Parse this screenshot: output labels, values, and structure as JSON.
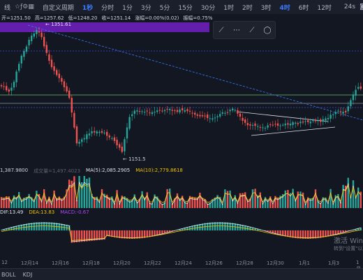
{
  "toolbar": {
    "left_partial": "线",
    "custom_period": "自定义周期",
    "periods": [
      "1秒",
      "分时",
      "1分",
      "3分",
      "5分",
      "15分",
      "30分",
      "1时",
      "2时",
      "3时",
      "4时",
      "6时",
      "12时"
    ],
    "active_period": "4时",
    "right_partial": "24s"
  },
  "info": {
    "open_label": "开=1251.50",
    "high_label": "高=1257.62",
    "low_label": "低=1248.20",
    "close_label": "收=1251.14",
    "change_label": "涨幅=0.00%(0.02)",
    "amp_label": "振幅=0.75%"
  },
  "price_marks": {
    "high": "← 1351.61",
    "low": "← 1151.5"
  },
  "volume_legend": {
    "vol": "1,387.9800",
    "turnover": "成交量=1,497.4023",
    "ma5": "MA(5):2,085.2905",
    "ma10": "MA(10):2,779.8618"
  },
  "macd_legend": {
    "dif": "DIF:13.49",
    "dea": "DEA:13.83",
    "macd": "MACD:-0.67"
  },
  "xaxis": [
    "12",
    "12月14",
    "12月16",
    "12月18",
    "12月20",
    "12月22",
    "12月24",
    "12月26",
    "12月28",
    "12月30",
    "1月1",
    "1月3",
    "1月"
  ],
  "bottom": {
    "indicators": [
      "BOLL",
      "KDJ"
    ]
  },
  "watermark": {
    "line1": "激活 Win",
    "line2": "转到\"设置\"以"
  },
  "colors": {
    "up": "#26a69a",
    "down": "#ef5350",
    "accent": "#3b7bff",
    "banner": "#6a1fb8"
  }
}
